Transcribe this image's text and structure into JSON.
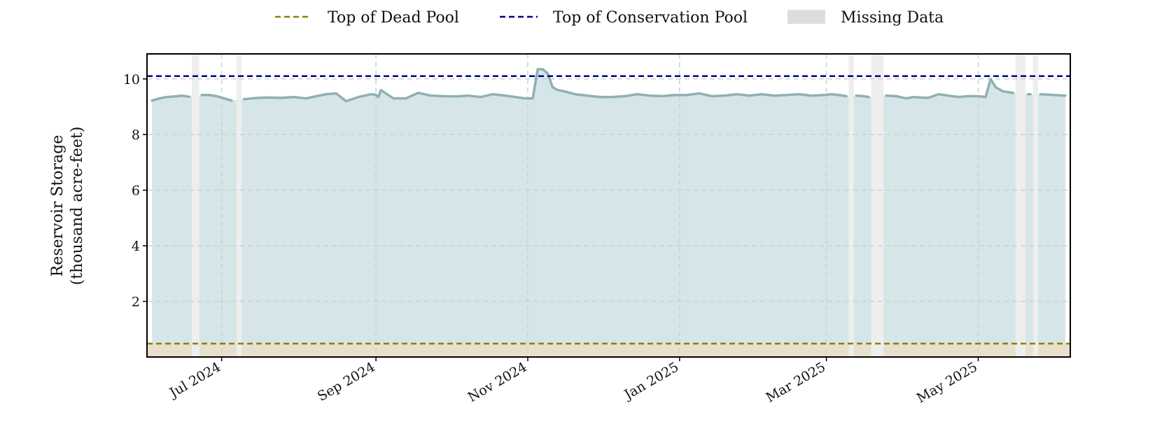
{
  "chart_data": {
    "type": "area",
    "title": "",
    "ylabel": [
      "Reservoir Storage",
      "(thousand acre-feet)"
    ],
    "xlabel": "",
    "xlim": [
      "2024-06-01",
      "2025-06-07"
    ],
    "ylim": [
      0,
      10.9
    ],
    "x_ticks": [
      {
        "date": "2024-07-01",
        "label": "Jul 2024"
      },
      {
        "date": "2024-09-01",
        "label": "Sep 2024"
      },
      {
        "date": "2024-11-01",
        "label": "Nov 2024"
      },
      {
        "date": "2025-01-01",
        "label": "Jan 2025"
      },
      {
        "date": "2025-03-01",
        "label": "Mar 2025"
      },
      {
        "date": "2025-05-01",
        "label": "May 2025"
      }
    ],
    "y_ticks": [
      2,
      4,
      6,
      8,
      10
    ],
    "grid": true,
    "legend_position": "top-center",
    "legend": [
      {
        "label": "Top of Dead Pool",
        "style": "dashed-line",
        "color": "#8b8000"
      },
      {
        "label": "Top of Conservation Pool",
        "style": "dashed-line",
        "color": "#00008b"
      },
      {
        "label": "Missing Data",
        "style": "patch",
        "color": "#dddddd"
      }
    ],
    "reference_lines": {
      "top_of_dead_pool": 0.48,
      "top_of_conservation_pool": 10.1
    },
    "missing_data_ranges": [
      [
        "2024-06-19",
        "2024-06-22"
      ],
      [
        "2024-07-07",
        "2024-07-09"
      ],
      [
        "2025-03-10",
        "2025-03-12"
      ],
      [
        "2025-03-19",
        "2025-03-24"
      ],
      [
        "2025-05-16",
        "2025-05-20"
      ],
      [
        "2025-05-23",
        "2025-05-25"
      ]
    ],
    "series": [
      {
        "color": "#8fb0b4",
        "fill": "#d6e6e8",
        "x": [
          "2024-06-03",
          "2024-06-06",
          "2024-06-09",
          "2024-06-12",
          "2024-06-15",
          "2024-06-18",
          "2024-06-23",
          "2024-06-26",
          "2024-06-29",
          "2024-07-02",
          "2024-07-05",
          "2024-07-10",
          "2024-07-13",
          "2024-07-16",
          "2024-07-20",
          "2024-07-25",
          "2024-07-30",
          "2024-08-04",
          "2024-08-08",
          "2024-08-12",
          "2024-08-16",
          "2024-08-20",
          "2024-08-25",
          "2024-08-30",
          "2024-09-01",
          "2024-09-02",
          "2024-09-03",
          "2024-09-08",
          "2024-09-13",
          "2024-09-18",
          "2024-09-23",
          "2024-09-28",
          "2024-10-03",
          "2024-10-08",
          "2024-10-13",
          "2024-10-18",
          "2024-10-23",
          "2024-10-27",
          "2024-10-31",
          "2024-11-03",
          "2024-11-05",
          "2024-11-07",
          "2024-11-09",
          "2024-11-11",
          "2024-11-13",
          "2024-11-16",
          "2024-11-20",
          "2024-11-25",
          "2024-11-30",
          "2024-12-05",
          "2024-12-10",
          "2024-12-15",
          "2024-12-20",
          "2024-12-25",
          "2024-12-30",
          "2025-01-04",
          "2025-01-09",
          "2025-01-14",
          "2025-01-19",
          "2025-01-24",
          "2025-01-29",
          "2025-02-03",
          "2025-02-08",
          "2025-02-13",
          "2025-02-18",
          "2025-02-23",
          "2025-02-28",
          "2025-03-03",
          "2025-03-06",
          "2025-03-09",
          "2025-03-13",
          "2025-03-16",
          "2025-03-18",
          "2025-03-25",
          "2025-03-29",
          "2025-04-02",
          "2025-04-05",
          "2025-04-08",
          "2025-04-11",
          "2025-04-15",
          "2025-04-19",
          "2025-04-23",
          "2025-04-27",
          "2025-05-01",
          "2025-05-04",
          "2025-05-06",
          "2025-05-08",
          "2025-05-11",
          "2025-05-15",
          "2025-05-21",
          "2025-05-22",
          "2025-05-26",
          "2025-06-05"
        ],
        "values": [
          9.22,
          9.3,
          9.35,
          9.37,
          9.4,
          9.36,
          9.42,
          9.42,
          9.38,
          9.3,
          9.22,
          9.27,
          9.3,
          9.32,
          9.33,
          9.32,
          9.35,
          9.3,
          9.38,
          9.45,
          9.48,
          9.2,
          9.35,
          9.45,
          9.43,
          9.35,
          9.6,
          9.3,
          9.3,
          9.5,
          9.4,
          9.38,
          9.37,
          9.4,
          9.35,
          9.45,
          9.4,
          9.35,
          9.3,
          9.3,
          10.35,
          10.35,
          10.2,
          9.7,
          9.6,
          9.55,
          9.45,
          9.4,
          9.35,
          9.35,
          9.38,
          9.45,
          9.4,
          9.38,
          9.42,
          9.42,
          9.48,
          9.38,
          9.4,
          9.45,
          9.4,
          9.45,
          9.4,
          9.42,
          9.45,
          9.4,
          9.42,
          9.45,
          9.42,
          9.38,
          9.4,
          9.38,
          9.35,
          9.4,
          9.38,
          9.3,
          9.35,
          9.33,
          9.32,
          9.45,
          9.4,
          9.35,
          9.38,
          9.38,
          9.35,
          10.0,
          9.7,
          9.55,
          9.5,
          9.45,
          9.45,
          9.45,
          9.4
        ],
        "breaks_after_dates": [
          "2024-06-18",
          "2024-07-05",
          "2025-03-09",
          "2025-03-18",
          "2025-05-15",
          "2025-05-22"
        ]
      }
    ]
  }
}
